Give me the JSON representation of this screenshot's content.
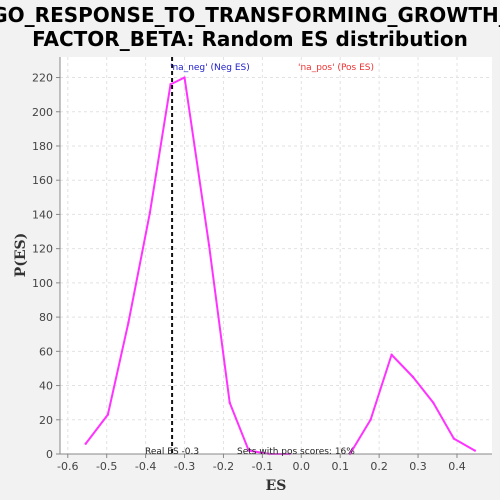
{
  "chart_data": {
    "type": "line",
    "title_line1": "GO_RESPONSE_TO_TRANSFORMING_GROWTH_",
    "title_line2": "FACTOR_BETA: Random ES distribution",
    "xlabel": "ES",
    "ylabel": "P(ES)",
    "xlim": [
      -0.62,
      0.49
    ],
    "ylim": [
      0,
      232
    ],
    "x_ticks": [
      -0.6,
      -0.5,
      -0.4,
      -0.3,
      -0.2,
      -0.1,
      0.0,
      0.1,
      0.2,
      0.3,
      0.4
    ],
    "y_ticks": [
      0,
      20,
      40,
      60,
      80,
      100,
      120,
      140,
      160,
      180,
      200,
      220
    ],
    "x_tick_labels": [
      "-0.6",
      "-0.5",
      "-0.4",
      "-0.3",
      "-0.2",
      "-0.1",
      "0.0",
      "0.1",
      "0.2",
      "0.3",
      "0.4"
    ],
    "y_tick_labels": [
      "0",
      "20",
      "40",
      "60",
      "80",
      "100",
      "120",
      "140",
      "160",
      "180",
      "200",
      "220"
    ],
    "grid": true,
    "series": [
      {
        "name": "'na_neg' (Neg ES)",
        "color": "#2020cc",
        "line_color": "#ff33ff",
        "x": [
          -0.554,
          -0.497,
          -0.444,
          -0.389,
          -0.336,
          -0.3,
          -0.237,
          -0.184,
          -0.135,
          -0.082,
          -0.03
        ],
        "values": [
          6,
          23,
          77,
          141,
          216,
          220,
          122,
          30,
          2,
          0,
          0
        ]
      },
      {
        "name": "'na_pos' (Pos ES)",
        "color": "#ee3333",
        "line_color": "#ff33ff",
        "x": [
          0.125,
          0.178,
          0.232,
          0.287,
          0.339,
          0.392,
          0.446
        ],
        "values": [
          0,
          20,
          58,
          45,
          30,
          9,
          2
        ]
      }
    ],
    "real_es": -0.332,
    "real_es_label": "Real ES -0.3",
    "pos_scores_label": "Sets with pos scores: 16%",
    "legend_placement": "top"
  }
}
